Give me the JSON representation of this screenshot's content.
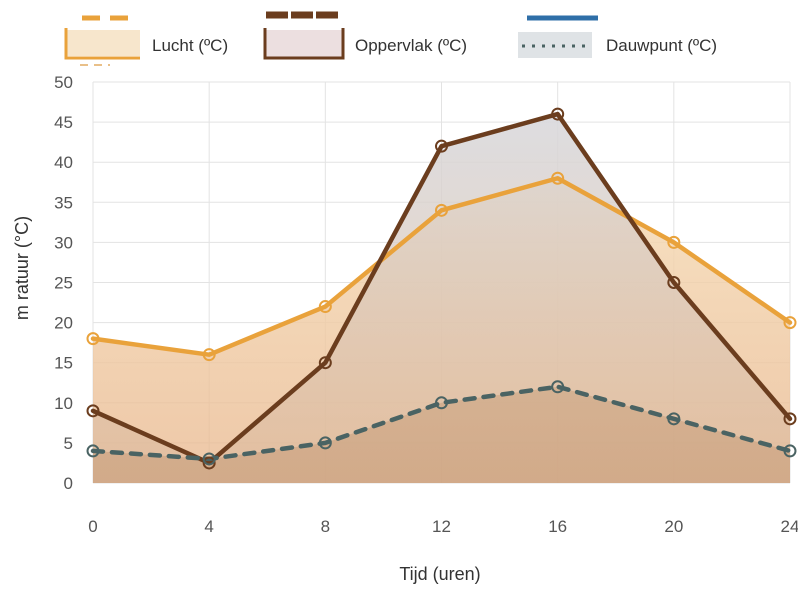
{
  "chart_data": {
    "type": "line",
    "title": "",
    "xlabel": "Tijd (uren)",
    "ylabel": "m   ratuur  (°C)",
    "x": [
      0,
      4,
      8,
      12,
      16,
      20,
      24
    ],
    "xlim": [
      0,
      24
    ],
    "ylim": [
      0,
      50
    ],
    "xticks": [
      "0",
      "4",
      "8",
      "12",
      "16",
      "20",
      "24"
    ],
    "yticks": [
      "0",
      "5",
      "10",
      "15",
      "20",
      "25",
      "30",
      "35",
      "40",
      "45",
      "50"
    ],
    "grid": true,
    "legend_position": "top",
    "series": [
      {
        "name": "Lucht (ºC)",
        "values": [
          18,
          16,
          22,
          34,
          38,
          30,
          20
        ],
        "color": "#e9a23b",
        "style": "solid",
        "fill": true
      },
      {
        "name": "Oppervlak (ºC)",
        "values": [
          9,
          2.5,
          15,
          42,
          46,
          25,
          8
        ],
        "color": "#6b3d1e",
        "style": "solid",
        "fill": true
      },
      {
        "name": "Dauwpunt (ºC)",
        "values": [
          4,
          3,
          5,
          10,
          12,
          8,
          4
        ],
        "color": "#4a6363",
        "style": "dotted",
        "fill": true
      }
    ]
  }
}
